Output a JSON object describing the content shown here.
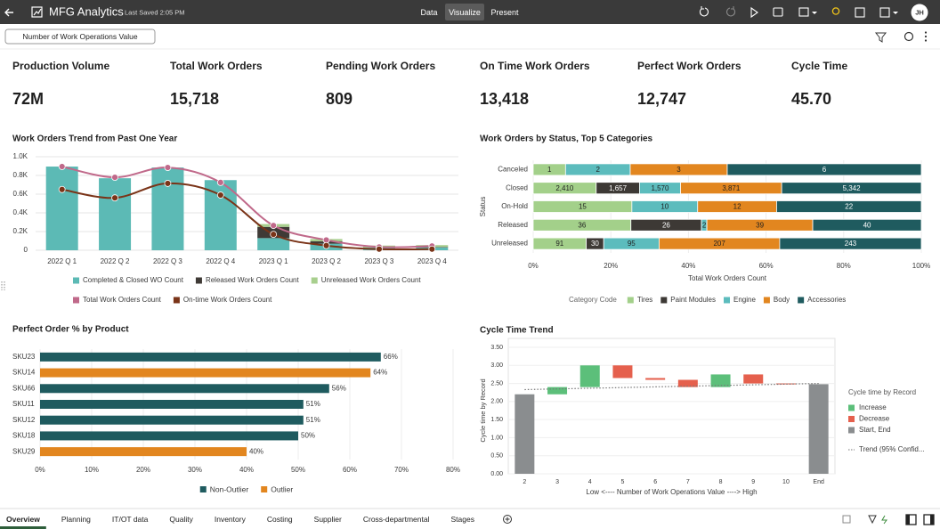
{
  "header": {
    "app_title": "MFG Analytics",
    "last_saved": "Last Saved 2:05 PM",
    "modes": [
      "Data",
      "Visualize",
      "Present"
    ],
    "active_mode": 1,
    "user_initials": "JH"
  },
  "filter": "Number of Work Operations Value",
  "kpis": [
    {
      "label": "Production Volume",
      "value": "72M"
    },
    {
      "label": "Total Work Orders",
      "value": "15,718"
    },
    {
      "label": "Pending Work Orders",
      "value": "809"
    },
    {
      "label": "On Time Work Orders",
      "value": "13,418"
    },
    {
      "label": "Perfect Work Orders",
      "value": "12,747"
    },
    {
      "label": "Cycle Time",
      "value": "45.70"
    }
  ],
  "chart_data": [
    {
      "type": "combo",
      "title": "Work Orders Trend from Past One Year",
      "categories": [
        "2022 Q 1",
        "2022 Q 2",
        "2022 Q 3",
        "2022 Q 4",
        "2023 Q 1",
        "2023 Q 2",
        "2023 Q 3",
        "2023 Q 4"
      ],
      "ylim": [
        0,
        1000
      ],
      "yticks": [
        0,
        {
          "value": 200,
          "label": "0.2K"
        },
        {
          "value": 400,
          "label": "0.4K"
        },
        {
          "value": 600,
          "label": "0.6K"
        },
        {
          "value": 800,
          "label": "0.8K"
        },
        {
          "value": 1000,
          "label": "1.0K"
        }
      ],
      "grid": true,
      "legend": "bottom",
      "series": [
        {
          "name": "Completed & Closed WO Count",
          "kind": "bar",
          "color": "#5cbab5",
          "values": [
            895,
            770,
            885,
            750,
            130,
            70,
            30,
            30
          ]
        },
        {
          "name": "Released Work Orders Count",
          "kind": "bar",
          "color": "#3f3a36",
          "values": [
            null,
            null,
            null,
            null,
            120,
            25,
            null,
            5
          ]
        },
        {
          "name": "Unreleased Work Orders Count",
          "kind": "bar",
          "color": "#a8cf8e",
          "values": [
            null,
            null,
            null,
            null,
            30,
            25,
            20,
            20
          ]
        },
        {
          "name": "Total Work Orders Count",
          "kind": "line",
          "color": "#c0698a",
          "values": [
            895,
            780,
            885,
            725,
            265,
            110,
            35,
            45
          ]
        },
        {
          "name": "On-time Work Orders Count",
          "kind": "line",
          "color": "#7a3418",
          "values": [
            650,
            560,
            715,
            590,
            170,
            50,
            12,
            12
          ]
        }
      ]
    },
    {
      "type": "stacked_bar_100",
      "title": "Work Orders by Status, Top 5 Categories",
      "categories": [
        "Canceled",
        "Closed",
        "On-Hold",
        "Released",
        "Unreleased"
      ],
      "y_label": "Status",
      "x_label": "Total Work Orders Count",
      "legend_title": "Category Code",
      "xlim": [
        0,
        100
      ],
      "xticks": [
        {
          "value": 0,
          "label": "0%"
        },
        {
          "value": 20,
          "label": "20%"
        },
        {
          "value": 40,
          "label": "40%"
        },
        {
          "value": 60,
          "label": "60%"
        },
        {
          "value": 80,
          "label": "80%"
        },
        {
          "value": 100,
          "label": "100%"
        }
      ],
      "series": [
        {
          "name": "Tires",
          "color": "#a3d08a",
          "values": [
            1,
            2410,
            15,
            36,
            91
          ],
          "value_labels": [
            "1",
            "2,410",
            "15",
            "36",
            "91"
          ]
        },
        {
          "name": "Paint Modules",
          "color": "#3d3935",
          "values": [
            null,
            1657,
            null,
            26,
            30
          ],
          "value_labels": [
            null,
            "1,657",
            null,
            "26",
            "30"
          ]
        },
        {
          "name": "Engine",
          "color": "#5cbcbd",
          "values": [
            2,
            1570,
            10,
            2,
            95
          ],
          "value_labels": [
            "2",
            "1,570",
            "10",
            "2",
            "95"
          ]
        },
        {
          "name": "Body",
          "color": "#e2861f",
          "values": [
            3,
            3871,
            12,
            39,
            207
          ],
          "value_labels": [
            "3",
            "3,871",
            "12",
            "39",
            "207"
          ]
        },
        {
          "name": "Accessories",
          "color": "#1f5b5f",
          "values": [
            6,
            5342,
            22,
            40,
            243
          ],
          "value_labels": [
            "6",
            "5,342",
            "22",
            "40",
            "243"
          ]
        }
      ]
    },
    {
      "type": "hbar",
      "title": "Perfect Order % by Product",
      "categories": [
        "SKU23",
        "SKU14",
        "SKU66",
        "SKU11",
        "SKU12",
        "SKU18",
        "SKU29"
      ],
      "xlim": [
        0,
        80
      ],
      "xticks": [
        {
          "value": 0,
          "label": "0%"
        },
        {
          "value": 10,
          "label": "10%"
        },
        {
          "value": 20,
          "label": "20%"
        },
        {
          "value": 30,
          "label": "30%"
        },
        {
          "value": 40,
          "label": "40%"
        },
        {
          "value": 50,
          "label": "50%"
        },
        {
          "value": 60,
          "label": "60%"
        },
        {
          "value": 70,
          "label": "70%"
        },
        {
          "value": 80,
          "label": "80%"
        }
      ],
      "series": [
        {
          "name": "Non-Outlier",
          "color": "#1f5b5f",
          "values": [
            66,
            null,
            56,
            51,
            51,
            50,
            null
          ],
          "value_labels": [
            "66%",
            null,
            "56%",
            "51%",
            "51%",
            "50%",
            null
          ]
        },
        {
          "name": "Outlier",
          "color": "#e2861f",
          "values": [
            null,
            64,
            null,
            null,
            null,
            null,
            40
          ],
          "value_labels": [
            null,
            "64%",
            null,
            null,
            null,
            null,
            "40%"
          ]
        }
      ]
    },
    {
      "type": "waterfall",
      "title": "Cycle Time Trend",
      "categories": [
        "2",
        "3",
        "4",
        "5",
        "6",
        "7",
        "8",
        "9",
        "10",
        "End"
      ],
      "measure": [
        "total",
        "delta",
        "delta",
        "delta",
        "delta",
        "delta",
        "delta",
        "delta",
        "delta",
        "total"
      ],
      "values": [
        2.2,
        0.2,
        0.6,
        -0.35,
        -0.05,
        -0.2,
        0.35,
        -0.25,
        -0.02,
        2.48
      ],
      "y_label": "Cycle time by Record",
      "x_label": "Low <---- Number of Work Operations Value ----> High",
      "ylim": [
        0,
        3.5
      ],
      "yticks": [
        {
          "value": 0,
          "label": "0.00"
        },
        {
          "value": 0.5,
          "label": "0.50"
        },
        {
          "value": 1,
          "label": "1.00"
        },
        {
          "value": 1.5,
          "label": "1.50"
        },
        {
          "value": 2,
          "label": "2.00"
        },
        {
          "value": 2.5,
          "label": "2.50"
        },
        {
          "value": 3,
          "label": "3.00"
        },
        {
          "value": 3.5,
          "label": "3.50"
        }
      ],
      "grid": true,
      "legend_title": "Cycle time by Record",
      "legend": [
        {
          "name": "Increase",
          "color": "#5cbf7a"
        },
        {
          "name": "Decrease",
          "color": "#e5604d"
        },
        {
          "name": "Start, End",
          "color": "#8a8d8f"
        }
      ],
      "trend": {
        "name": "Trend (95% Confid...",
        "color": "#777777",
        "values": [
          2.33,
          2.5
        ]
      }
    }
  ],
  "tabs": [
    "Overview",
    "Planning",
    "IT/OT data",
    "Quality",
    "Inventory",
    "Costing",
    "Supplier",
    "Cross-departmental",
    "Stages"
  ],
  "active_tab": 0
}
